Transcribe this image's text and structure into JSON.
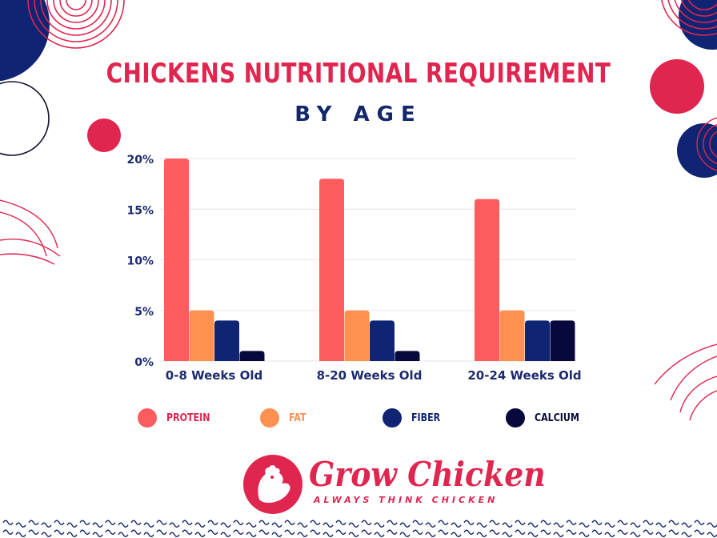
{
  "header": {
    "title": "CHICKENS NUTRITIONAL REQUIREMENT",
    "subtitle": "BY AGE"
  },
  "chart_data": {
    "type": "bar",
    "categories": [
      "0-8 Weeks Old",
      "8-20 Weeks Old",
      "20-24 Weeks Old"
    ],
    "series": [
      {
        "name": "PROTEIN",
        "values": [
          20,
          18,
          16
        ],
        "color": "#fd5c5f"
      },
      {
        "name": "FAT",
        "values": [
          5,
          5,
          5
        ],
        "color": "#fe9050"
      },
      {
        "name": "FIBER",
        "values": [
          4,
          4,
          4
        ],
        "color": "#0f2473"
      },
      {
        "name": "CALCIUM",
        "values": [
          1,
          1,
          4
        ],
        "color": "#07083b"
      }
    ],
    "ylim": [
      0,
      20
    ],
    "yticks": [
      "0%",
      "5%",
      "10%",
      "15%",
      "20%"
    ],
    "grid": true,
    "legend_position": "bottom"
  },
  "logo": {
    "name": "Grow Chicken",
    "tagline": "ALWAYS THINK CHICKEN"
  },
  "colors": {
    "accent": "#e0254f",
    "navy": "#13286b",
    "text": "#1c2a6e"
  }
}
